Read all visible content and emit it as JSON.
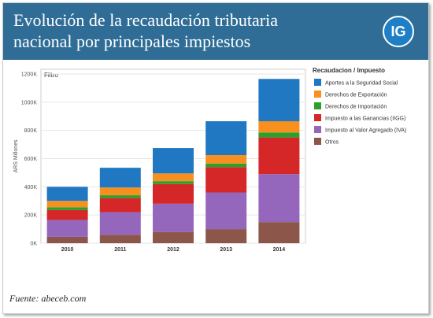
{
  "header": {
    "title_line1": "Evolución de la recaudación tributaria",
    "title_line2": "nacional por principales impiestos",
    "logo_text": "IG"
  },
  "filter_label": "Filtro",
  "source": "Fuente: abeceb.com",
  "colors": {
    "header_bg": "#2f6d97",
    "series": [
      "#1f78c1",
      "#f7901e",
      "#2ca02c",
      "#d62728",
      "#9467bd",
      "#8c564b"
    ]
  },
  "chart_data": {
    "type": "bar",
    "stacked": true,
    "title": "",
    "xlabel": "",
    "ylabel": "ARS Millones",
    "ylim": [
      0,
      1200000
    ],
    "yticks": [
      0,
      200000,
      400000,
      600000,
      800000,
      1000000,
      1200000
    ],
    "ytick_labels": [
      "0K",
      "200K",
      "400K",
      "600K",
      "800K",
      "1000K",
      "1200K"
    ],
    "categories": [
      "2010",
      "2011",
      "2012",
      "2013",
      "2014"
    ],
    "legend_title": "Recaudacion / Impuesto",
    "legend_position": "right",
    "grid": true,
    "series": [
      {
        "name": "Otros",
        "values": [
          45000,
          60000,
          80000,
          100000,
          150000
        ]
      },
      {
        "name": "Impuesto al Valor Agregado (IVA)",
        "values": [
          120000,
          160000,
          200000,
          260000,
          340000
        ]
      },
      {
        "name": "Impuesto a las Ganancias (IIGG)",
        "values": [
          70000,
          100000,
          140000,
          180000,
          260000
        ]
      },
      {
        "name": "Derechos de Importación",
        "values": [
          20000,
          20000,
          20000,
          25000,
          35000
        ]
      },
      {
        "name": "Derechos de Exportación",
        "values": [
          45000,
          55000,
          55000,
          60000,
          80000
        ]
      },
      {
        "name": "Aportes a la Seguridad Social",
        "values": [
          100000,
          140000,
          180000,
          240000,
          300000
        ]
      }
    ],
    "legend_order": [
      "Aportes a la Seguridad Social",
      "Derechos de Exportación",
      "Derechos de Importación",
      "Impuesto a las Ganancias (IIGG)",
      "Impuesto al Valor Agregado (IVA)",
      "Otros"
    ]
  }
}
